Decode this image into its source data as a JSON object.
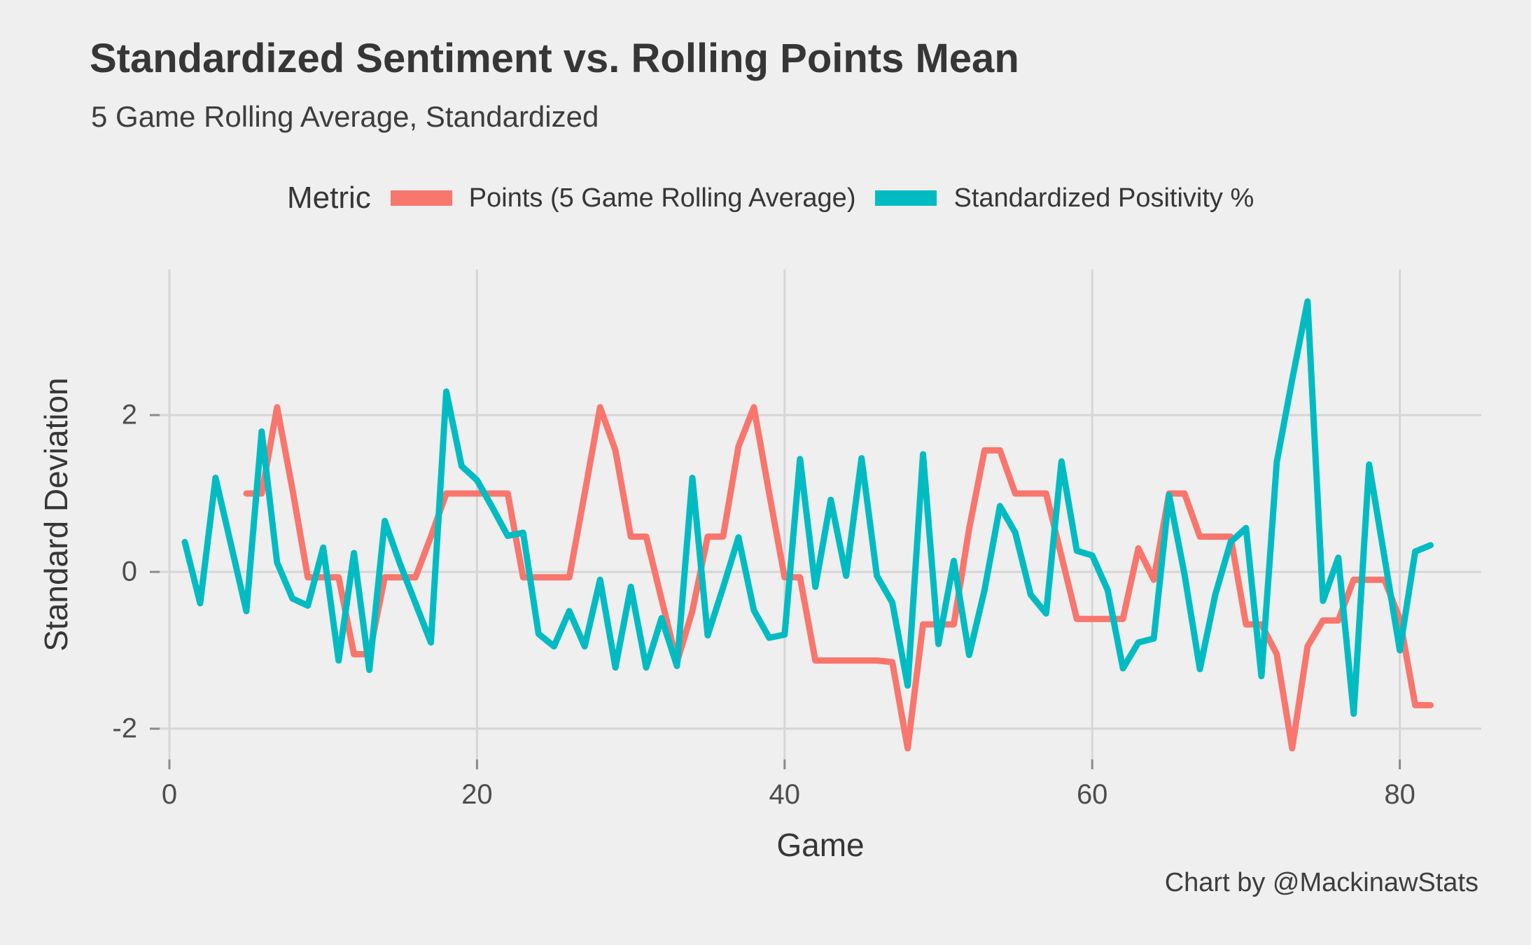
{
  "title": "Standardized Sentiment vs. Rolling Points Mean",
  "subtitle": "5 Game Rolling Average, Standardized",
  "caption": "Chart by @MackinawStats",
  "legend": {
    "title": "Metric",
    "items": [
      {
        "label": "Points (5 Game Rolling Average)",
        "color": "#F8766D"
      },
      {
        "label": "Standardized Positivity %",
        "color": "#00BCC2"
      }
    ]
  },
  "axes": {
    "xlabel": "Game",
    "ylabel": "Standard Deviation",
    "x_ticks": [
      0,
      20,
      40,
      60,
      80
    ],
    "y_ticks": [
      2,
      0,
      -2
    ]
  },
  "colors": {
    "background": "#EFEFEF",
    "gridline": "#D6D6D6",
    "tick_mark": "#8A8A8A",
    "points_line": "#F8766D",
    "sentiment_line": "#00BCC2"
  },
  "chart_data": {
    "type": "line",
    "title": "Standardized Sentiment vs. Rolling Points Mean",
    "subtitle": "5 Game Rolling Average, Standardized",
    "xlabel": "Game",
    "ylabel": "Standard Deviation",
    "xlim": [
      -1,
      84
    ],
    "ylim": [
      -2.45,
      3.6
    ],
    "x_ticks": [
      0,
      20,
      40,
      60,
      80
    ],
    "y_ticks": [
      2,
      0,
      -2
    ],
    "grid": "major",
    "legend_position": "top",
    "series": [
      {
        "name": "Points (5 Game Rolling Average)",
        "color": "#F8766D",
        "x": [
          5,
          6,
          7,
          8,
          9,
          10,
          11,
          12,
          13,
          14,
          15,
          16,
          17,
          18,
          19,
          20,
          21,
          22,
          23,
          24,
          25,
          26,
          27,
          28,
          29,
          30,
          31,
          32,
          33,
          34,
          35,
          36,
          37,
          38,
          39,
          40,
          41,
          42,
          43,
          44,
          45,
          46,
          47,
          48,
          49,
          50,
          51,
          52,
          53,
          54,
          55,
          56,
          57,
          58,
          59,
          60,
          61,
          62,
          63,
          64,
          65,
          66,
          67,
          68,
          69,
          70,
          71,
          72,
          73,
          74,
          75,
          76,
          77,
          78,
          79,
          80,
          81,
          82
        ],
        "values": [
          1.0,
          1.0,
          2.1,
          1.05,
          -0.07,
          -0.07,
          -0.07,
          -1.05,
          -1.05,
          -0.07,
          -0.07,
          -0.07,
          0.45,
          1.0,
          1.0,
          1.0,
          1.0,
          1.0,
          -0.07,
          -0.07,
          -0.07,
          -0.07,
          1.0,
          2.1,
          1.55,
          0.45,
          0.45,
          -0.35,
          -1.15,
          -0.5,
          0.45,
          0.45,
          1.6,
          2.1,
          1.0,
          -0.07,
          -0.07,
          -1.13,
          -1.13,
          -1.13,
          -1.13,
          -1.13,
          -1.15,
          -2.25,
          -0.67,
          -0.67,
          -0.67,
          0.55,
          1.55,
          1.55,
          1.0,
          1.0,
          1.0,
          0.2,
          -0.6,
          -0.6,
          -0.6,
          -0.6,
          0.3,
          -0.1,
          1.0,
          1.0,
          0.45,
          0.45,
          0.45,
          -0.67,
          -0.67,
          -1.05,
          -2.25,
          -0.95,
          -0.62,
          -0.62,
          -0.1,
          -0.1,
          -0.1,
          -0.6,
          -1.7,
          -1.7
        ]
      },
      {
        "name": "Standardized Positivity %",
        "color": "#00BCC2",
        "x": [
          1,
          2,
          3,
          4,
          5,
          6,
          7,
          8,
          9,
          10,
          11,
          12,
          13,
          14,
          15,
          16,
          17,
          18,
          19,
          20,
          21,
          22,
          23,
          24,
          25,
          26,
          27,
          28,
          29,
          30,
          31,
          32,
          33,
          34,
          35,
          36,
          37,
          38,
          39,
          40,
          41,
          42,
          43,
          44,
          45,
          46,
          47,
          48,
          49,
          50,
          51,
          52,
          53,
          54,
          55,
          56,
          57,
          58,
          59,
          60,
          61,
          62,
          63,
          64,
          65,
          66,
          67,
          68,
          69,
          70,
          71,
          72,
          73,
          74,
          75,
          76,
          77,
          78,
          79,
          80,
          81,
          82
        ],
        "values": [
          0.38,
          -0.4,
          1.2,
          0.35,
          -0.5,
          1.79,
          0.12,
          -0.34,
          -0.43,
          0.31,
          -1.13,
          0.24,
          -1.25,
          0.65,
          0.1,
          -0.4,
          -0.9,
          2.3,
          1.35,
          1.17,
          0.82,
          0.46,
          0.5,
          -0.79,
          -0.95,
          -0.5,
          -0.95,
          -0.1,
          -1.22,
          -0.19,
          -1.22,
          -0.59,
          -1.2,
          1.2,
          -0.81,
          -0.2,
          0.44,
          -0.49,
          -0.84,
          -0.8,
          1.44,
          -0.19,
          0.92,
          -0.05,
          1.45,
          -0.05,
          -0.39,
          -1.45,
          1.5,
          -0.92,
          0.14,
          -1.06,
          -0.23,
          0.84,
          0.5,
          -0.29,
          -0.53,
          1.41,
          0.27,
          0.21,
          -0.23,
          -1.23,
          -0.9,
          -0.85,
          0.98,
          -0.03,
          -1.24,
          -0.29,
          0.38,
          0.56,
          -1.33,
          1.4,
          2.45,
          3.45,
          -0.37,
          0.18,
          -1.81,
          1.37,
          0.19,
          -1.0,
          0.26,
          0.34
        ]
      }
    ]
  }
}
